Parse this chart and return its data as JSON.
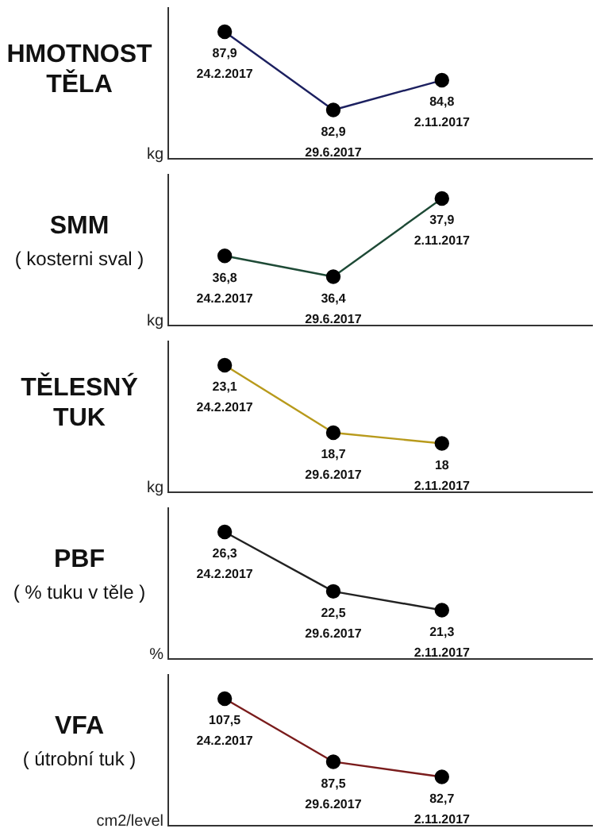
{
  "chart_data": [
    {
      "type": "line",
      "title": "HMOTNOST TĚLA",
      "ylabel": "kg",
      "categories": [
        null,
        null,
        null
      ],
      "series": [
        {
          "color": "#1c2060",
          "values": [
            87.9,
            82.9,
            84.8
          ],
          "value_labels": [
            "87,9\n24.2.2017",
            "82,9\n29.6.2017",
            "84,8\n2.11.2017"
          ]
        }
      ],
      "marker": "circle",
      "tick_labels": false,
      "grid": false,
      "legend": false
    },
    {
      "type": "line",
      "title": "SMM",
      "subtitle": "( kosterni sval )",
      "ylabel": "kg",
      "categories": [
        null,
        null,
        null
      ],
      "series": [
        {
          "color": "#1e4a36",
          "values": [
            36.8,
            36.4,
            37.9
          ],
          "value_labels": [
            "36,8\n24.2.2017",
            "36,4\n29.6.2017",
            "37,9\n2.11.2017"
          ]
        }
      ],
      "marker": "circle",
      "tick_labels": false,
      "grid": false,
      "legend": false
    },
    {
      "type": "line",
      "title": "TĚLESNÝ TUK",
      "ylabel": "kg",
      "categories": [
        null,
        null,
        null
      ],
      "series": [
        {
          "color": "#b89a1c",
          "values": [
            23.1,
            18.7,
            18
          ],
          "value_labels": [
            "23,1\n24.2.2017",
            "18,7\n29.6.2017",
            "18\n2.11.2017"
          ]
        }
      ],
      "marker": "circle",
      "tick_labels": false,
      "grid": false,
      "legend": false
    },
    {
      "type": "line",
      "title": "PBF",
      "subtitle": "( % tuku v těle )",
      "ylabel": "%",
      "categories": [
        null,
        null,
        null
      ],
      "series": [
        {
          "color": "#222222",
          "values": [
            26.3,
            22.5,
            21.3
          ],
          "value_labels": [
            "26,3\n24.2.2017",
            "22,5\n29.6.2017",
            "21,3\n2.11.2017"
          ]
        }
      ],
      "marker": "circle",
      "tick_labels": false,
      "grid": false,
      "legend": false
    },
    {
      "type": "line",
      "title": "VFA",
      "subtitle": "( útrobní tuk )",
      "ylabel": "cm2/level",
      "categories": [
        null,
        null,
        null
      ],
      "series": [
        {
          "color": "#7a1c1c",
          "values": [
            107.5,
            87.5,
            82.7
          ],
          "value_labels": [
            "107,5\n24.2.2017",
            "87,5\n29.6.2017",
            "82,7\n2.11.2017"
          ]
        }
      ],
      "marker": "circle",
      "tick_labels": false,
      "grid": false,
      "legend": false
    }
  ]
}
